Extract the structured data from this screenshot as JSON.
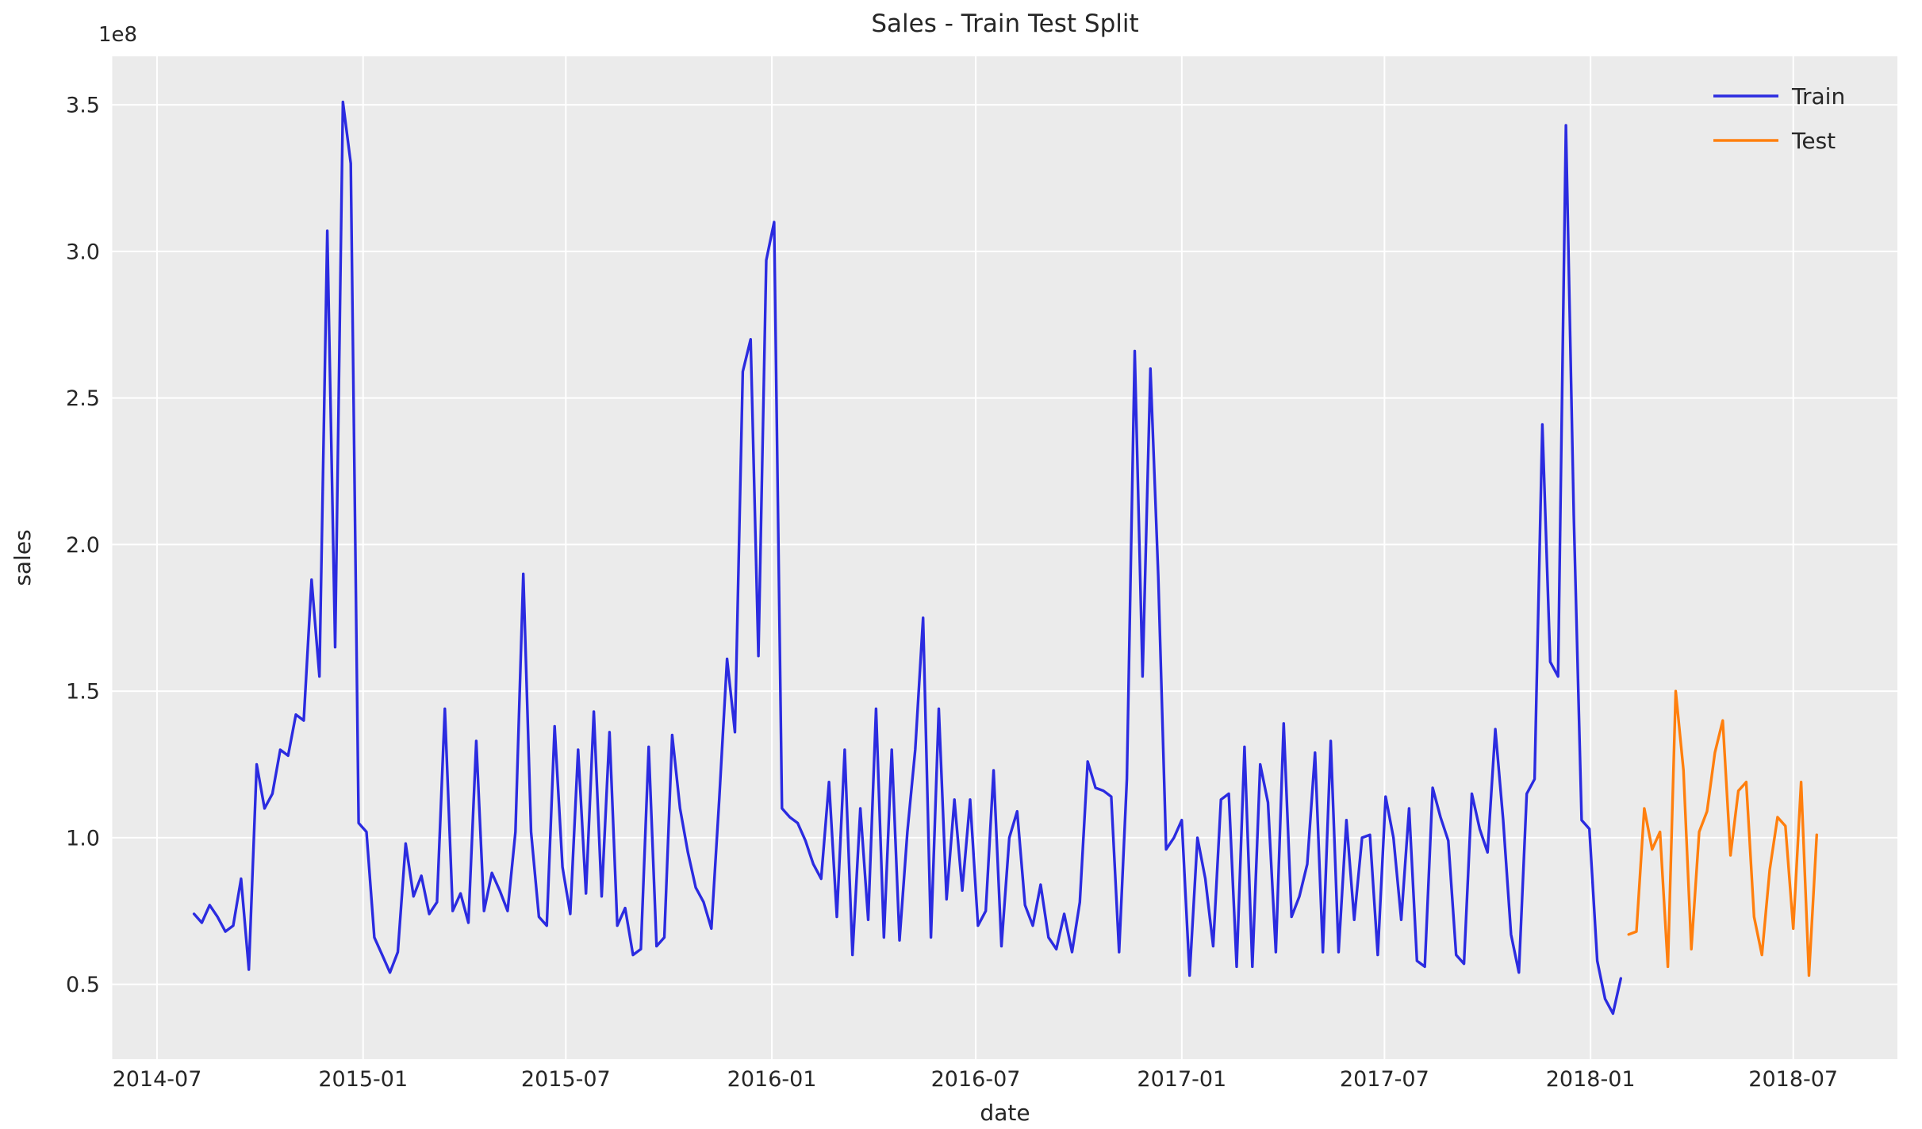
{
  "figure": {
    "background": "#ffffff",
    "axes_background": "#ebebeb",
    "grid_color": "#ffffff",
    "text_color": "#262626"
  },
  "chart_data": {
    "type": "line",
    "title": "Sales - Train Test Split",
    "xlabel": "date",
    "ylabel": "sales",
    "y_offset_label": "1e8",
    "y_unit": "1e8",
    "grid": true,
    "legend_position": "upper right",
    "x_tick_dates": [
      "2014-07-01",
      "2015-01-01",
      "2015-07-01",
      "2016-01-01",
      "2016-07-01",
      "2017-01-01",
      "2017-07-01",
      "2018-01-01",
      "2018-07-01"
    ],
    "x_tick_labels": [
      "2014-07",
      "2015-01",
      "2015-07",
      "2016-01",
      "2016-07",
      "2017-01",
      "2017-07",
      "2018-01",
      "2018-07"
    ],
    "y_ticks": [
      0.5,
      1.0,
      1.5,
      2.0,
      2.5,
      3.0,
      3.5
    ],
    "y_tick_labels": [
      "0.5",
      "1.0",
      "1.5",
      "2.0",
      "2.5",
      "3.0",
      "3.5"
    ],
    "xlim": [
      "2014-05-22",
      "2018-10-02"
    ],
    "ylim": [
      0.2445,
      3.6655
    ],
    "frequency": "weekly",
    "series": [
      {
        "name": "Train",
        "color": "#2b2be0",
        "start": "2014-08-03",
        "step_days": 7,
        "values": [
          0.74,
          0.71,
          0.77,
          0.73,
          0.68,
          0.7,
          0.86,
          0.55,
          1.25,
          1.1,
          1.15,
          1.3,
          1.28,
          1.42,
          1.4,
          1.88,
          1.55,
          3.07,
          1.65,
          3.51,
          3.3,
          1.05,
          1.02,
          0.66,
          0.6,
          0.54,
          0.61,
          0.98,
          0.8,
          0.87,
          0.74,
          0.78,
          1.44,
          0.75,
          0.81,
          0.71,
          1.33,
          0.75,
          0.88,
          0.82,
          0.75,
          1.02,
          1.9,
          1.02,
          0.73,
          0.7,
          1.38,
          0.9,
          0.74,
          1.3,
          0.81,
          1.43,
          0.8,
          1.36,
          0.7,
          0.76,
          0.6,
          0.62,
          1.31,
          0.63,
          0.66,
          1.35,
          1.1,
          0.95,
          0.83,
          0.78,
          0.69,
          1.13,
          1.61,
          1.36,
          2.59,
          2.7,
          1.62,
          2.97,
          3.1,
          1.1,
          1.07,
          1.05,
          0.99,
          0.91,
          0.86,
          1.19,
          0.73,
          1.3,
          0.6,
          1.1,
          0.72,
          1.44,
          0.66,
          1.3,
          0.65,
          1.02,
          1.3,
          1.75,
          0.66,
          1.44,
          0.79,
          1.13,
          0.82,
          1.13,
          0.7,
          0.75,
          1.23,
          0.63,
          1.0,
          1.09,
          0.77,
          0.7,
          0.84,
          0.66,
          0.62,
          0.74,
          0.61,
          0.78,
          1.26,
          1.17,
          1.16,
          1.14,
          0.61,
          1.2,
          2.66,
          1.55,
          2.6,
          1.89,
          0.96,
          1.0,
          1.06,
          0.53,
          1.0,
          0.86,
          0.63,
          1.13,
          1.15,
          0.56,
          1.31,
          0.56,
          1.25,
          1.12,
          0.61,
          1.39,
          0.73,
          0.8,
          0.91,
          1.29,
          0.61,
          1.33,
          0.61,
          1.06,
          0.72,
          1.0,
          1.01,
          0.6,
          1.14,
          1.0,
          0.72,
          1.1,
          0.58,
          0.56,
          1.17,
          1.07,
          0.99,
          0.6,
          0.57,
          1.15,
          1.03,
          0.95,
          1.37,
          1.06,
          0.67,
          0.54,
          1.15,
          1.2,
          2.41,
          1.6,
          1.55,
          3.43,
          2.1,
          1.06,
          1.03,
          0.58,
          0.45,
          0.4,
          0.52
        ]
      },
      {
        "name": "Test",
        "color": "#ff7f0e",
        "start": "2018-02-04",
        "step_days": 7,
        "values": [
          0.67,
          0.68,
          1.1,
          0.96,
          1.02,
          0.56,
          1.5,
          1.23,
          0.62,
          1.02,
          1.09,
          1.29,
          1.4,
          0.94,
          1.16,
          1.19,
          0.73,
          0.6,
          0.89,
          1.07,
          1.04,
          0.69,
          1.19,
          0.53,
          1.01
        ]
      }
    ]
  },
  "legend": {
    "entries": [
      {
        "label": "Train",
        "color": "#2b2be0"
      },
      {
        "label": "Test",
        "color": "#ff7f0e"
      }
    ]
  }
}
